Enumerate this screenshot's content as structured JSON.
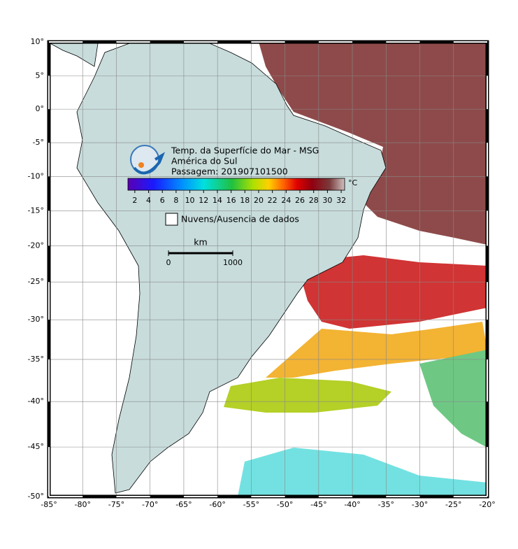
{
  "map": {
    "lonlim": [
      -85,
      -20
    ],
    "latlim": [
      -50,
      10
    ],
    "lonticks": [
      {
        "value": -85,
        "label": "-85°"
      },
      {
        "value": -80,
        "label": "-80°"
      },
      {
        "value": -75,
        "label": "-75°"
      },
      {
        "value": -70,
        "label": "-70°"
      },
      {
        "value": -65,
        "label": "-65°"
      },
      {
        "value": -60,
        "label": "-60°"
      },
      {
        "value": -55,
        "label": "-55°"
      },
      {
        "value": -50,
        "label": "-50°"
      },
      {
        "value": -45,
        "label": "-45°"
      },
      {
        "value": -40,
        "label": "-40°"
      },
      {
        "value": -35,
        "label": "-35°"
      },
      {
        "value": -30,
        "label": "-30°"
      },
      {
        "value": -25,
        "label": "-25°"
      },
      {
        "value": -20,
        "label": "-20°"
      }
    ],
    "latticks": [
      {
        "value": 10,
        "label": "10°"
      },
      {
        "value": 5,
        "label": "5°"
      },
      {
        "value": 0,
        "label": "0°"
      },
      {
        "value": -5,
        "label": "-5°"
      },
      {
        "value": -10,
        "label": "-10°"
      },
      {
        "value": -15,
        "label": "-15°"
      },
      {
        "value": -20,
        "label": "-20°"
      },
      {
        "value": -25,
        "label": "-25°"
      },
      {
        "value": -30,
        "label": "-30°"
      },
      {
        "value": -35,
        "label": "-35°"
      },
      {
        "value": -40,
        "label": "-40°"
      },
      {
        "value": -45,
        "label": "-45°"
      },
      {
        "value": -50,
        "label": "-50°"
      }
    ],
    "title_lines": [
      "Temp. da Superfície do Mar - MSG",
      "América do Sul",
      "Passagem: 201907101500"
    ],
    "colorbar": {
      "unit": "°C",
      "clim": [
        1,
        32.5
      ],
      "ticks": [
        2,
        4,
        6,
        8,
        10,
        12,
        14,
        16,
        18,
        20,
        22,
        24,
        26,
        28,
        30,
        32
      ]
    },
    "legend": "Nuvens/Ausencia de dados",
    "scale": {
      "label": "km",
      "ticks": [
        0,
        1000
      ]
    },
    "grid": true
  }
}
